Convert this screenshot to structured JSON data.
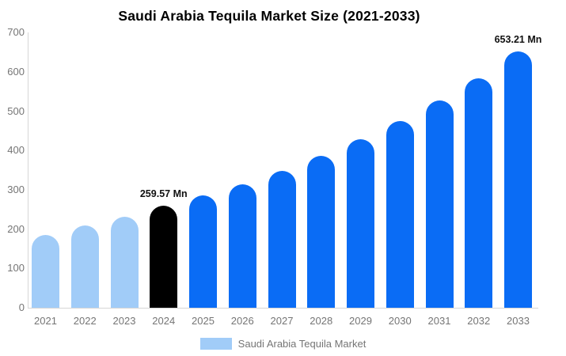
{
  "title": "Saudi Arabia Tequila Market Size (2021-2033)",
  "legend": {
    "label": "Saudi Arabia Tequila Market",
    "swatch_color": "#a1ccf8"
  },
  "colors": {
    "historical_bar": "#a1ccf8",
    "base_year_bar": "#000000",
    "forecast_bar": "#0a6cf5",
    "axis_line": "#d6d6d6",
    "tick_text": "#757575",
    "title_text": "#000000",
    "data_label_text": "#111111",
    "background": "#ffffff"
  },
  "chart_data": {
    "type": "bar",
    "title": "Saudi Arabia Tequila Market Size (2021-2033)",
    "categories": [
      "2021",
      "2022",
      "2023",
      "2024",
      "2025",
      "2026",
      "2027",
      "2028",
      "2029",
      "2030",
      "2031",
      "2032",
      "2033"
    ],
    "values": [
      186,
      209,
      232,
      259.57,
      285,
      315,
      349,
      387,
      429,
      475,
      527,
      585,
      653.21
    ],
    "bar_colors": [
      "#a1ccf8",
      "#a1ccf8",
      "#a1ccf8",
      "#000000",
      "#0a6cf5",
      "#0a6cf5",
      "#0a6cf5",
      "#0a6cf5",
      "#0a6cf5",
      "#0a6cf5",
      "#0a6cf5",
      "#0a6cf5",
      "#0a6cf5"
    ],
    "data_labels": [
      {
        "index": 3,
        "text": "259.57 Mn"
      },
      {
        "index": 12,
        "text": "653.21 Mn"
      }
    ],
    "xlabel": "",
    "ylabel": "",
    "ylim": [
      0,
      700
    ],
    "yticks": [
      0,
      100,
      200,
      300,
      400,
      500,
      600,
      700
    ],
    "grid": false,
    "legend_position": "bottom",
    "legend_entries": [
      "Saudi Arabia Tequila Market"
    ]
  }
}
